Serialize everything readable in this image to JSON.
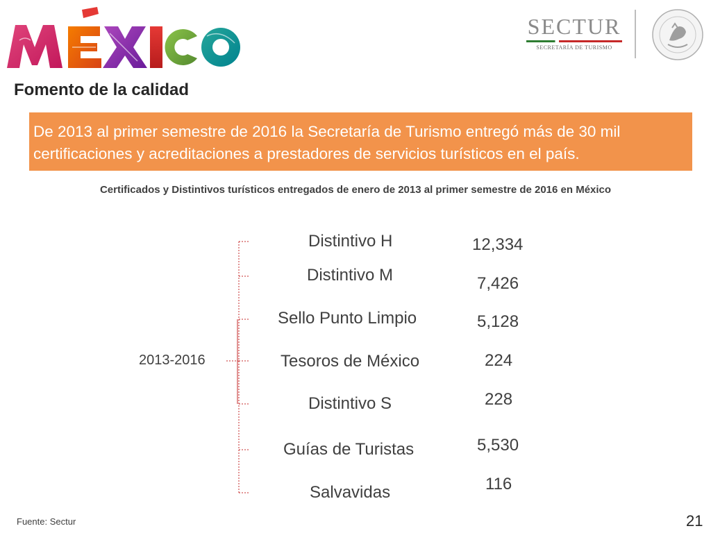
{
  "header": {
    "logo_text": "MÉXICO",
    "sectur_name": "SECTUR",
    "sectur_subtitle": "SECRETARÍA DE TURISMO",
    "seal_text": "ESTADOS UNIDOS MEXICANOS"
  },
  "section_title": "Fomento de la calidad",
  "banner_text": "De 2013 al primer semestre de 2016  la Secretaría de Turismo entregó más de 30 mil certificaciones y acreditaciones a prestadores de servicios turísticos en el país.",
  "subtitle": "Certificados y Distintivos turísticos entregados de enero de 2013 al primer semestre de 2016 en México",
  "period_label": "2013-2016",
  "items": [
    {
      "label": "Distintivo H",
      "value": "12,334"
    },
    {
      "label": "Distintivo M",
      "value": "7,426"
    },
    {
      "label": "Sello Punto Limpio",
      "value": "5,128"
    },
    {
      "label": "Tesoros de México",
      "value": "224"
    },
    {
      "label": "Distintivo S",
      "value": "228"
    },
    {
      "label": "Guías de Turistas",
      "value": "5,530"
    },
    {
      "label": "Salvavidas",
      "value": "116"
    }
  ],
  "footer_source": "Fuente: Sectur",
  "page_number": "21",
  "colors": {
    "banner": "#f2934b",
    "bracket": "#c62828",
    "text": "#404040"
  }
}
